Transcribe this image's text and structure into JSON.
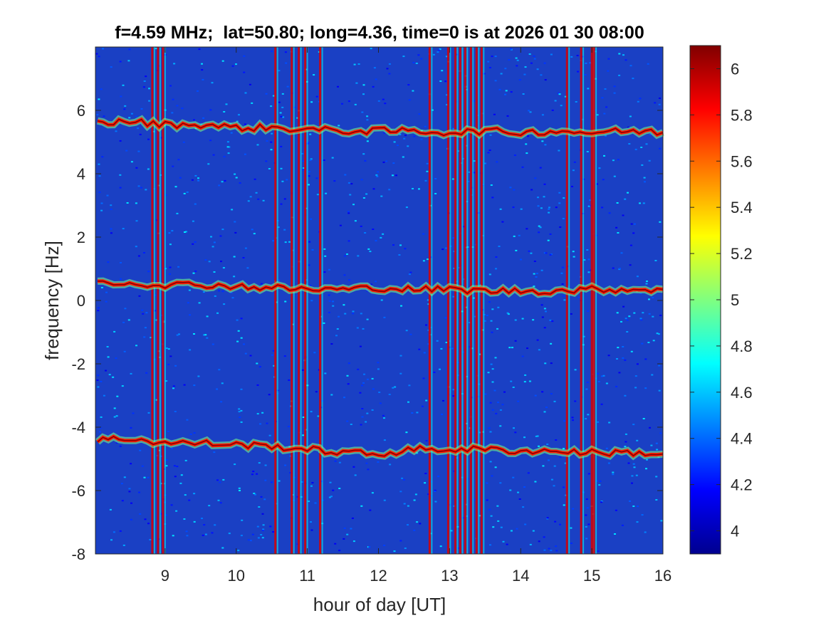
{
  "chart_data": {
    "type": "heatmap",
    "title": "f=4.59 MHz;  lat=50.80; long=4.36, time=0 is at 2026 01 30 08:00",
    "xlabel": "hour of day [UT]",
    "ylabel": "frequency [Hz]",
    "xlim": [
      8.02,
      16.0
    ],
    "ylim": [
      -8,
      8
    ],
    "xticks": [
      9,
      10,
      11,
      12,
      13,
      14,
      15,
      16
    ],
    "yticks": [
      -8,
      -6,
      -4,
      -2,
      0,
      2,
      4,
      6
    ],
    "colormap": "jet",
    "colorbar": {
      "clim": [
        3.9,
        6.1
      ],
      "ticks": [
        4,
        4.2,
        4.4,
        4.6,
        4.8,
        5,
        5.2,
        5.4,
        5.6,
        5.8,
        6
      ]
    },
    "background_level": 4.35,
    "traces": [
      {
        "name": "",
        "points": [
          [
            8.05,
            5.6
          ],
          [
            8.5,
            5.65
          ],
          [
            9.0,
            5.55
          ],
          [
            9.5,
            5.55
          ],
          [
            10.0,
            5.45
          ],
          [
            10.5,
            5.45
          ],
          [
            11.0,
            5.4
          ],
          [
            11.5,
            5.35
          ],
          [
            12.0,
            5.35
          ],
          [
            12.5,
            5.35
          ],
          [
            13.0,
            5.3
          ],
          [
            13.5,
            5.35
          ],
          [
            14.0,
            5.3
          ],
          [
            14.5,
            5.35
          ],
          [
            15.0,
            5.3
          ],
          [
            15.5,
            5.35
          ],
          [
            16.0,
            5.3
          ]
        ]
      },
      {
        "name": "",
        "points": [
          [
            8.05,
            0.6
          ],
          [
            8.5,
            0.55
          ],
          [
            9.0,
            0.5
          ],
          [
            9.5,
            0.5
          ],
          [
            10.0,
            0.45
          ],
          [
            10.5,
            0.4
          ],
          [
            11.0,
            0.35
          ],
          [
            11.5,
            0.35
          ],
          [
            12.0,
            0.4
          ],
          [
            12.5,
            0.35
          ],
          [
            13.0,
            0.35
          ],
          [
            13.5,
            0.3
          ],
          [
            14.0,
            0.3
          ],
          [
            14.5,
            0.3
          ],
          [
            15.0,
            0.35
          ],
          [
            15.5,
            0.35
          ],
          [
            16.0,
            0.35
          ]
        ]
      },
      {
        "name": "",
        "points": [
          [
            8.05,
            -4.4
          ],
          [
            8.5,
            -4.35
          ],
          [
            9.0,
            -4.5
          ],
          [
            9.5,
            -4.5
          ],
          [
            10.0,
            -4.55
          ],
          [
            10.5,
            -4.6
          ],
          [
            11.0,
            -4.7
          ],
          [
            11.5,
            -4.8
          ],
          [
            12.0,
            -4.85
          ],
          [
            12.5,
            -4.7
          ],
          [
            13.0,
            -4.7
          ],
          [
            13.5,
            -4.7
          ],
          [
            14.0,
            -4.75
          ],
          [
            14.5,
            -4.75
          ],
          [
            15.0,
            -4.8
          ],
          [
            15.5,
            -4.8
          ],
          [
            16.0,
            -4.85
          ]
        ]
      }
    ],
    "vertical_streaks": [
      8.82,
      8.9,
      8.97,
      10.55,
      10.78,
      10.88,
      10.97,
      11.18,
      12.72,
      12.98,
      13.08,
      13.15,
      13.22,
      13.3,
      13.38,
      13.45,
      14.65,
      14.85,
      15.0,
      15.03
    ]
  }
}
